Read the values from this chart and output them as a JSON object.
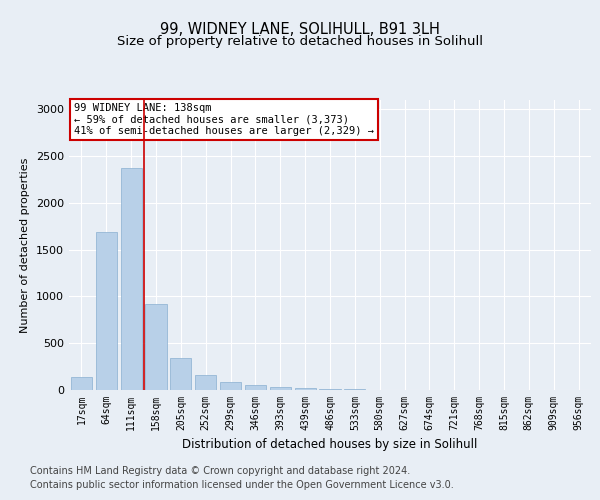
{
  "title_line1": "99, WIDNEY LANE, SOLIHULL, B91 3LH",
  "title_line2": "Size of property relative to detached houses in Solihull",
  "xlabel": "Distribution of detached houses by size in Solihull",
  "ylabel": "Number of detached properties",
  "bar_color": "#b8d0e8",
  "bar_edge_color": "#8ab0d0",
  "vline_color": "#cc0000",
  "vline_x_idx": 2,
  "annotation_title": "99 WIDNEY LANE: 138sqm",
  "annotation_line2": "← 59% of detached houses are smaller (3,373)",
  "annotation_line3": "41% of semi-detached houses are larger (2,329) →",
  "annotation_box_color": "#ffffff",
  "annotation_box_edge": "#cc0000",
  "categories": [
    "17sqm",
    "64sqm",
    "111sqm",
    "158sqm",
    "205sqm",
    "252sqm",
    "299sqm",
    "346sqm",
    "393sqm",
    "439sqm",
    "486sqm",
    "533sqm",
    "580sqm",
    "627sqm",
    "674sqm",
    "721sqm",
    "768sqm",
    "815sqm",
    "862sqm",
    "909sqm",
    "956sqm"
  ],
  "values": [
    140,
    1690,
    2370,
    920,
    340,
    160,
    90,
    55,
    35,
    25,
    15,
    10,
    5,
    0,
    0,
    0,
    0,
    0,
    0,
    0,
    0
  ],
  "ylim": [
    0,
    3100
  ],
  "yticks": [
    0,
    500,
    1000,
    1500,
    2000,
    2500,
    3000
  ],
  "footer_line1": "Contains HM Land Registry data © Crown copyright and database right 2024.",
  "footer_line2": "Contains public sector information licensed under the Open Government Licence v3.0.",
  "background_color": "#e8eef5",
  "plot_background_color": "#e8eef5",
  "title_fontsize": 10.5,
  "subtitle_fontsize": 9.5,
  "footer_fontsize": 7
}
